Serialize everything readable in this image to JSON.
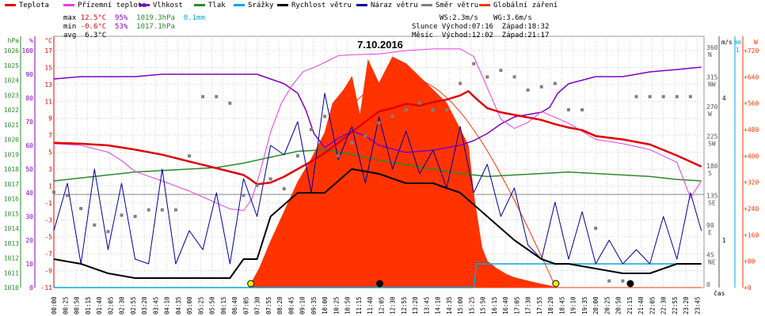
{
  "legend": [
    {
      "label": "Teplota",
      "color": "#e00000"
    },
    {
      "label": "Přízemní teplota",
      "color": "#e040e0"
    },
    {
      "label": "Vlhkost",
      "color": "#8000c0"
    },
    {
      "label": "Tlak",
      "color": "#2a8a2a"
    },
    {
      "label": "Srážky",
      "color": "#00a8d8"
    },
    {
      "label": "Rychlost větru",
      "color": "#000000"
    },
    {
      "label": "Náraz větru",
      "color": "#0000a0"
    },
    {
      "label": "Směr větru",
      "color": "#808080"
    },
    {
      "label": "Globální záření",
      "color": "#ff3300"
    }
  ],
  "stats": {
    "max_label": "max",
    "max_temp": "12.5°C",
    "max_hum": "95%",
    "max_press": "1019.3hPa",
    "rain": "0.1mm",
    "min_label": "min",
    "min_temp": "-0.6°C",
    "min_hum": "53%",
    "min_press": "1017.1hPa",
    "avg_label": "avg",
    "avg_temp": "6.3°C"
  },
  "info": {
    "ws": "WS:2.3m/s",
    "wg": "WG:3.6m/s",
    "sun": "Slunce Východ:07:16  Západ:18:32",
    "moon": "Měsíc  Východ:12:02  Západ:21:17"
  },
  "colors": {
    "temp": "#e00000",
    "ground": "#e040e0",
    "hum": "#8000c0",
    "press": "#2a8a2a",
    "rain": "#00a8d8",
    "wind": "#000000",
    "gust": "#0000a0",
    "dir": "#808080",
    "solar": "#ff3300"
  },
  "chart_data": {
    "type": "line",
    "title": "7.10.2016",
    "xlabel": "čas",
    "x_ticks": [
      "00:00",
      "00:25",
      "00:50",
      "01:15",
      "01:40",
      "02:05",
      "02:30",
      "02:55",
      "03:20",
      "03:45",
      "04:10",
      "04:35",
      "05:00",
      "05:25",
      "05:50",
      "06:15",
      "06:40",
      "07:05",
      "07:30",
      "07:55",
      "08:20",
      "08:45",
      "09:10",
      "09:35",
      "10:00",
      "10:25",
      "10:50",
      "11:15",
      "11:40",
      "12:05",
      "12:30",
      "12:55",
      "13:20",
      "13:45",
      "14:10",
      "14:35",
      "15:00",
      "15:25",
      "15:50",
      "16:15",
      "16:40",
      "17:05",
      "17:30",
      "17:55",
      "18:20",
      "18:45",
      "19:10",
      "19:35",
      "20:00",
      "20:25",
      "20:50",
      "21:15",
      "21:40",
      "22:05",
      "22:30",
      "22:55",
      "23:20",
      "23:45"
    ],
    "axes": {
      "hpa": {
        "label": "hPa",
        "ticks": [
          "1010",
          "1011",
          "1012",
          "1013",
          "1014",
          "1015",
          "1016",
          "1017",
          "1018",
          "1019",
          "1020",
          "1021",
          "1022",
          "1023",
          "1024",
          "1025",
          "1026"
        ],
        "color": "#2a8a2a"
      },
      "pct": {
        "label": "%",
        "ticks": [
          "0",
          "10",
          "20",
          "30",
          "40",
          "50",
          "60",
          "70",
          "80",
          "90",
          "100"
        ],
        "color": "#8000c0"
      },
      "degc": {
        "label": "°C",
        "ticks": [
          "-11",
          "-9",
          "-7",
          "-5",
          "-3",
          "-1",
          "1",
          "3",
          "5",
          "7",
          "9",
          "11",
          "13",
          "15",
          "17"
        ],
        "color": "#e00000"
      },
      "dir": {
        "label": "m/s",
        "ticks": [
          [
            "360",
            "N"
          ],
          [
            "315",
            "NW"
          ],
          [
            "270",
            "W"
          ],
          [
            "225",
            "SW"
          ],
          [
            "180",
            "S"
          ],
          [
            "135",
            "SE"
          ],
          [
            "90",
            "E"
          ],
          [
            "45",
            "NE"
          ],
          [
            "0",
            ""
          ]
        ],
        "color": "#555555"
      },
      "mm": {
        "label": "mm",
        "ticks": [
          "1"
        ],
        "color": "#00a8d8"
      },
      "ms": {
        "ticks": [
          "4",
          "1"
        ],
        "color": "#000000"
      },
      "w": {
        "label": "W",
        "ticks": [
          "0",
          "80",
          "160",
          "240",
          "320",
          "400",
          "480",
          "560",
          "640",
          "720"
        ],
        "color": "#ff3300"
      }
    },
    "series": [
      {
        "name": "Teplota",
        "unit": "°C",
        "x": [
          0,
          1,
          2,
          3,
          4,
          5,
          6,
          7,
          7.2,
          7.5,
          8,
          8.5,
          9,
          9.5,
          10,
          10.5,
          11,
          11.5,
          12,
          12.5,
          13,
          13.5,
          14,
          14.5,
          15,
          15.3,
          15.6,
          16,
          16.5,
          17,
          17.5,
          18,
          18.5,
          19,
          19.5,
          20,
          21,
          22,
          23,
          23.9
        ],
        "y": [
          6.1,
          6.0,
          5.8,
          5.3,
          4.7,
          3.9,
          3.1,
          2.3,
          1.9,
          1.2,
          1.4,
          2.1,
          3.0,
          3.9,
          4.9,
          6.1,
          7.4,
          8.6,
          9.8,
          10.2,
          10.7,
          10.5,
          10.9,
          11.2,
          11.7,
          12.2,
          11.3,
          10.2,
          9.7,
          9.4,
          9.1,
          8.8,
          8.3,
          7.9,
          7.6,
          6.9,
          6.5,
          5.9,
          4.6,
          3.3
        ]
      },
      {
        "name": "Přízemní teplota",
        "unit": "°C",
        "x": [
          0,
          1,
          2,
          2.5,
          3,
          4,
          5,
          6,
          6.5,
          7,
          7.3,
          7.6,
          8,
          8.4,
          8.8,
          9.2,
          9.6,
          10,
          10.5,
          11,
          12,
          13,
          14,
          15,
          15.5,
          16,
          16.5,
          17,
          17.5,
          18,
          19,
          20,
          21,
          22,
          23,
          23.5,
          23.9
        ],
        "y": [
          6.0,
          5.8,
          5.0,
          4.0,
          2.7,
          1.6,
          0.4,
          -1.0,
          -1.7,
          -1.9,
          -0.6,
          2.5,
          7.4,
          10.8,
          12.9,
          14.5,
          15.0,
          15.6,
          16.4,
          16.5,
          16.6,
          17.0,
          17.2,
          17.2,
          16.3,
          12.6,
          8.9,
          7.8,
          8.5,
          9.8,
          8.4,
          6.5,
          6.0,
          5.3,
          3.8,
          -0.4,
          1.6
        ]
      },
      {
        "name": "Vlhkost",
        "unit": "%",
        "x": [
          0,
          1,
          2,
          3,
          4,
          5,
          6,
          7,
          7.5,
          8,
          8.5,
          9,
          9.3,
          9.6,
          10,
          10.5,
          11,
          11.5,
          12,
          13,
          14,
          15,
          15.5,
          16,
          16.5,
          17,
          17.5,
          18,
          18.3,
          18.6,
          19,
          20,
          21,
          22,
          23,
          23.9
        ],
        "y": [
          88,
          89,
          89,
          89,
          90,
          90,
          90,
          90,
          90,
          88,
          86,
          82,
          75,
          65,
          59,
          63,
          66,
          64,
          60,
          57,
          58,
          60,
          62,
          65,
          69,
          72,
          73,
          74,
          76,
          82,
          86,
          89,
          89,
          91,
          92,
          93
        ]
      },
      {
        "name": "Tlak",
        "unit": "hPa",
        "x": [
          0,
          1,
          2,
          3,
          4,
          5,
          6,
          7,
          8,
          9,
          10,
          11,
          12,
          13,
          14,
          15,
          16,
          17,
          18,
          19,
          20,
          21,
          22,
          23,
          23.9
        ],
        "y": [
          1017.2,
          1017.4,
          1017.6,
          1017.8,
          1017.9,
          1018.0,
          1018.1,
          1018.4,
          1018.8,
          1019.2,
          1019.3,
          1019.0,
          1018.6,
          1018.3,
          1018.0,
          1017.7,
          1017.5,
          1017.6,
          1017.7,
          1017.8,
          1017.7,
          1017.6,
          1017.5,
          1017.3,
          1017.2
        ]
      },
      {
        "name": "Globální záření",
        "unit": "W",
        "x": [
          0,
          7.2,
          7.6,
          8,
          8.5,
          9,
          9.5,
          10,
          10.3,
          10.7,
          11,
          11.3,
          11.6,
          12,
          12.5,
          13,
          13.5,
          14,
          14.5,
          15,
          15.3,
          15.5,
          15.8,
          16,
          16.3,
          16.7,
          17,
          17.5,
          18,
          18.3,
          18.5,
          23.9
        ],
        "y": [
          0,
          0,
          60,
          140,
          230,
          320,
          390,
          470,
          560,
          600,
          640,
          520,
          690,
          620,
          700,
          680,
          640,
          600,
          560,
          480,
          430,
          280,
          120,
          80,
          60,
          40,
          30,
          20,
          10,
          5,
          0,
          0
        ]
      },
      {
        "name": "Rychlost větru",
        "unit": "m/s",
        "x": [
          0,
          1,
          2,
          3,
          4,
          5,
          6,
          6.5,
          7,
          7.5,
          8,
          9,
          10,
          11,
          12,
          13,
          14,
          15,
          16,
          17,
          18,
          18.5,
          19,
          20,
          21,
          22,
          23,
          23.9
        ],
        "y": [
          0.6,
          0.5,
          0.3,
          0.2,
          0.2,
          0.2,
          0.2,
          0.2,
          0.6,
          0.6,
          1.5,
          2.0,
          2.0,
          2.5,
          2.4,
          2.2,
          2.2,
          2.0,
          1.5,
          1.0,
          0.6,
          0.5,
          0.5,
          0.4,
          0.3,
          0.3,
          0.5,
          0.5
        ]
      },
      {
        "name": "Náraz větru",
        "unit": "m/s",
        "x": [
          0,
          0.5,
          1,
          1.5,
          2,
          2.5,
          3,
          3.5,
          4,
          4.5,
          5,
          5.5,
          6,
          6.5,
          7,
          7.5,
          8,
          8.5,
          9,
          9.5,
          10,
          10.5,
          11,
          11.5,
          12,
          12.5,
          13,
          13.5,
          14,
          14.5,
          15,
          15.5,
          16,
          16.5,
          17,
          17.5,
          18,
          18.5,
          19,
          19.5,
          20,
          20.5,
          21,
          21.5,
          22,
          22.5,
          23,
          23.5,
          23.9
        ],
        "y": [
          1.2,
          2.2,
          0.5,
          2.5,
          0.8,
          2.2,
          0.6,
          0.5,
          2.5,
          0.5,
          1.2,
          0.8,
          2.0,
          0.5,
          2.3,
          1.5,
          3.0,
          2.8,
          3.5,
          2.0,
          4.1,
          2.7,
          3.4,
          2.2,
          3.6,
          2.5,
          3.3,
          2.4,
          2.9,
          2.1,
          3.4,
          2.0,
          2.6,
          1.5,
          2.1,
          0.9,
          0.6,
          1.8,
          0.6,
          1.6,
          0.5,
          1.0,
          0.5,
          0.8,
          0.5,
          1.5,
          0.6,
          2.0,
          1.2
        ]
      },
      {
        "name": "Směr větru",
        "unit": "°",
        "x": [
          0,
          0.5,
          1,
          1.5,
          2,
          2.5,
          3,
          3.5,
          4,
          4.5,
          5,
          5.5,
          6,
          6.5,
          7,
          7.5,
          8,
          8.5,
          9,
          9.5,
          10,
          10.5,
          11,
          11.5,
          12,
          12.5,
          13,
          13.5,
          14,
          14.5,
          15,
          15.5,
          16,
          16.5,
          17,
          17.5,
          18,
          18.5,
          19,
          19.5,
          20,
          20.5,
          21,
          21.5,
          22,
          22.5,
          23,
          23.5
        ],
        "y": [
          145,
          140,
          120,
          95,
          85,
          110,
          108,
          118,
          118,
          118,
          200,
          290,
          290,
          280,
          140,
          155,
          165,
          150,
          200,
          240,
          260,
          200,
          220,
          230,
          250,
          260,
          270,
          280,
          270,
          270,
          310,
          340,
          320,
          330,
          320,
          300,
          305,
          310,
          270,
          270,
          90,
          10,
          10,
          290,
          290,
          290,
          290,
          290
        ]
      },
      {
        "name": "Srážky",
        "unit": "mm",
        "x": [
          0,
          15.5,
          15.6,
          23.9
        ],
        "y": [
          0,
          0,
          0.1,
          0.1
        ]
      }
    ],
    "ranges": {
      "temp": [
        -11,
        17
      ],
      "hum": [
        0,
        100
      ],
      "press": [
        1010,
        1026
      ],
      "solar": [
        0,
        720
      ],
      "wind": [
        0,
        5
      ],
      "dir": [
        0,
        360
      ]
    },
    "markers": [
      {
        "time": 7.27,
        "type": "sunrise"
      },
      {
        "time": 12.03,
        "type": "moonrise"
      },
      {
        "time": 18.53,
        "type": "sunset"
      },
      {
        "time": 21.28,
        "type": "moonset"
      }
    ],
    "grid": true
  }
}
